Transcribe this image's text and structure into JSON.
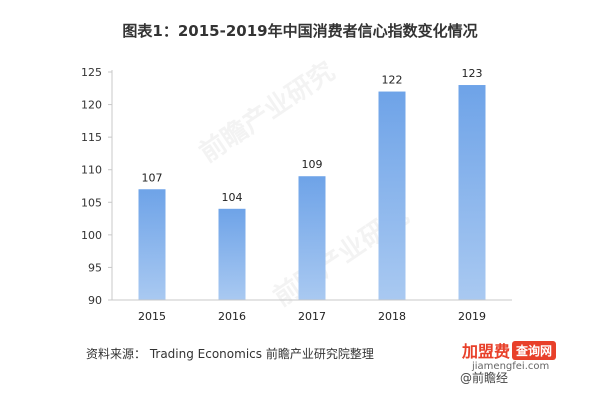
{
  "chart_data": {
    "type": "bar",
    "title": "图表1：2015-2019年中国消费者信心指数变化情况",
    "categories": [
      "2015",
      "2016",
      "2017",
      "2018",
      "2019"
    ],
    "values": [
      107,
      104,
      109,
      122,
      123
    ],
    "data_labels": [
      "107",
      "104",
      "109",
      "122",
      "123"
    ],
    "ylim": [
      90,
      125
    ],
    "yticks": [
      90,
      95,
      100,
      105,
      110,
      115,
      120,
      125
    ],
    "grid": false,
    "legend": "none",
    "colors": {
      "bar_top": "#6ea3e8",
      "bar_bottom": "#a9c9f1",
      "axis": "#c8c8c8"
    }
  },
  "source_text": "资料来源： Trading Economics 前瞻产业研究院整理",
  "watermark": {
    "main_text": "前瞻产业研究",
    "corner_text": "@前瞻经"
  },
  "site_logo": {
    "name": "加盟费",
    "badge": "查询网",
    "url": "jiamengfei.com"
  }
}
